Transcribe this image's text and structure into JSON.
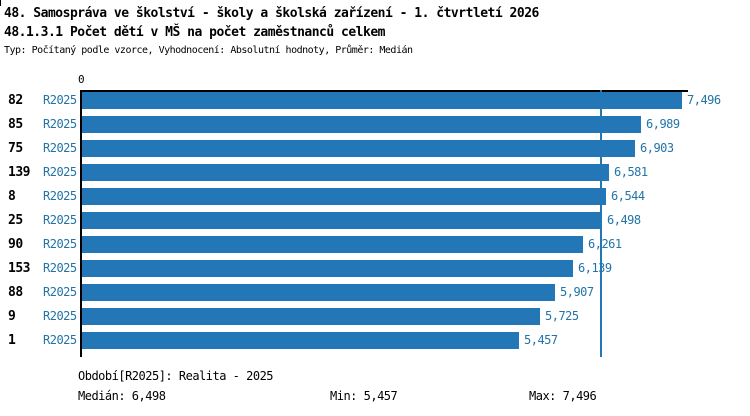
{
  "header": {
    "title": "48. Samospráva ve školství - školy a školská zařízení - 1. čtvrtletí 2026",
    "subtitle": "48.1.3.1 Počet dětí v MŠ na počet zaměstnanců celkem",
    "meta": "Typ: Počítaný podle vzorce, Vyhodnocení: Absolutní hodnoty, Průměr: Medián"
  },
  "chart_data": {
    "type": "bar",
    "orientation": "horizontal",
    "title": "48.1.3.1 Počet dětí v MŠ na počet zaměstnanců celkem",
    "categories": [
      "82",
      "85",
      "75",
      "139",
      "8",
      "25",
      "90",
      "153",
      "88",
      "9",
      "1"
    ],
    "period_label": "R2025",
    "values": [
      7496,
      6989,
      6903,
      6581,
      6544,
      6498,
      6261,
      6139,
      5907,
      5725,
      5457
    ],
    "value_labels": [
      "7,496",
      "6,989",
      "6,903",
      "6,581",
      "6,544",
      "6,498",
      "6,261",
      "6,139",
      "5,907",
      "5,725",
      "5,457"
    ],
    "x_axis": {
      "zero_tick": "0",
      "xlim": [
        0,
        7580
      ],
      "grid": false
    },
    "median_value": 6498,
    "min_value": 5457,
    "max_value": 7496,
    "bar_color": "#2377b6",
    "median_line_color": "#2377b6",
    "label_color": "#2274a8",
    "legend_position": "bottom"
  },
  "footer": {
    "period": "Období[R2025]: Realita - 2025",
    "median": "Medián: 6,498",
    "min": "Min: 5,457",
    "max": "Max: 7,496"
  }
}
